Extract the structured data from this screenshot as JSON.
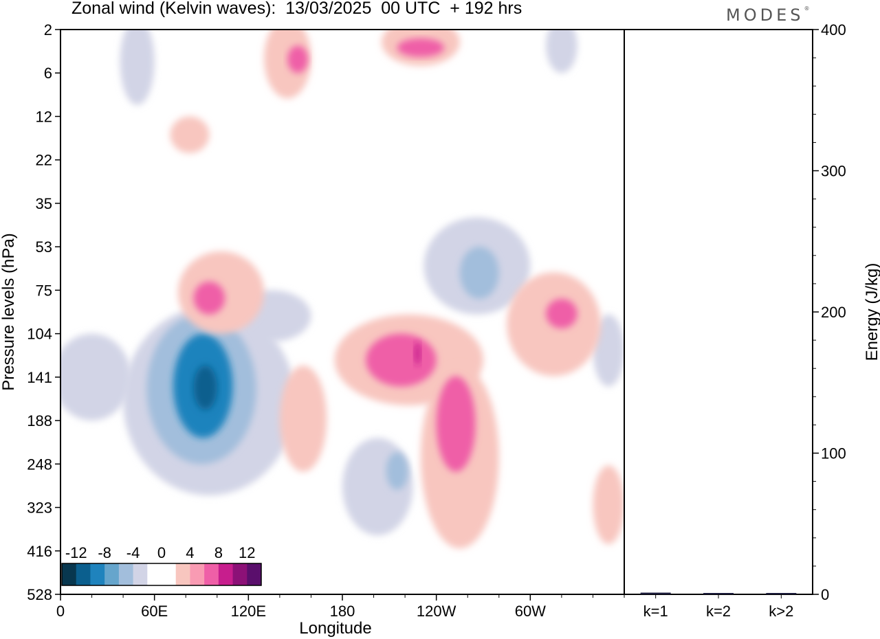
{
  "header": {
    "title": "Zonal wind (Kelvin waves):  13/03/2025  00 UTC  + 192 hrs",
    "logo": "MODES",
    "logo_mark": "®"
  },
  "chart_data": [
    {
      "type": "heatmap",
      "title": "Zonal wind (Kelvin waves):  13/03/2025  00 UTC  + 192 hrs",
      "xlabel": "Longitude",
      "ylabel": "Pressure levels (hPa)",
      "x_ticks": [
        "0",
        "60E",
        "120E",
        "180",
        "120W",
        "60W"
      ],
      "y_ticks": [
        "2",
        "6",
        "12",
        "22",
        "35",
        "53",
        "75",
        "104",
        "141",
        "188",
        "248",
        "323",
        "416",
        "528"
      ],
      "colorbar": {
        "labels": [
          "-12",
          "-8",
          "-4",
          "0",
          "4",
          "8",
          "12"
        ],
        "colors": [
          "#08374f",
          "#0b5f8e",
          "#1f83bd",
          "#66a5cc",
          "#a2bedc",
          "#d2d4e6",
          "#ffffff",
          "#ffffff",
          "#f8c6bf",
          "#f99bb3",
          "#ef5fa7",
          "#c71e8d",
          "#8c1177",
          "#5a0f6c"
        ]
      },
      "regions": [
        {
          "value": -3,
          "lon": [
            -5,
            45
          ],
          "lev": [
            104,
            188
          ]
        },
        {
          "value": -3,
          "lon": [
            38,
            60
          ],
          "lev": [
            1.5,
            10
          ]
        },
        {
          "value": -3,
          "lon": [
            40,
            150
          ],
          "lev": [
            85,
            300
          ]
        },
        {
          "value": -3,
          "lon": [
            110,
            160
          ],
          "lev": [
            75,
            110
          ]
        },
        {
          "value": -6,
          "lon": [
            55,
            125
          ],
          "lev": [
            90,
            248
          ]
        },
        {
          "value": -9,
          "lon": [
            72,
            110
          ],
          "lev": [
            104,
            210
          ]
        },
        {
          "value": -12,
          "lon": [
            85,
            100
          ],
          "lev": [
            130,
            175
          ]
        },
        {
          "value": -3,
          "lon": [
            310,
            330
          ],
          "lev": [
            1.5,
            6
          ]
        },
        {
          "value": -3,
          "lon": [
            232,
            300
          ],
          "lev": [
            40,
            90
          ]
        },
        {
          "value": -6,
          "lon": [
            255,
            280
          ],
          "lev": [
            53,
            80
          ]
        },
        {
          "value": -3,
          "lon": [
            180,
            225
          ],
          "lev": [
            210,
            380
          ]
        },
        {
          "value": -6,
          "lon": [
            208,
            222
          ],
          "lev": [
            230,
            290
          ]
        },
        {
          "value": -3,
          "lon": [
            340,
            360
          ],
          "lev": [
            90,
            150
          ]
        },
        {
          "value": 3,
          "lon": [
            75,
            130
          ],
          "lev": [
            55,
            104
          ]
        },
        {
          "value": 6,
          "lon": [
            85,
            105
          ],
          "lev": [
            70,
            90
          ]
        },
        {
          "value": 3,
          "lon": [
            130,
            160
          ],
          "lev": [
            1.5,
            9
          ]
        },
        {
          "value": 6,
          "lon": [
            145,
            158
          ],
          "lev": [
            3,
            6
          ]
        },
        {
          "value": 3,
          "lon": [
            205,
            255
          ],
          "lev": [
            1.5,
            5
          ]
        },
        {
          "value": 6,
          "lon": [
            215,
            245
          ],
          "lev": [
            2.5,
            4
          ]
        },
        {
          "value": 3,
          "lon": [
            70,
            95
          ],
          "lev": [
            12,
            20
          ]
        },
        {
          "value": 3,
          "lon": [
            175,
            270
          ],
          "lev": [
            90,
            170
          ]
        },
        {
          "value": 3,
          "lon": [
            140,
            170
          ],
          "lev": [
            130,
            260
          ]
        },
        {
          "value": 3,
          "lon": [
            230,
            280
          ],
          "lev": [
            130,
            410
          ]
        },
        {
          "value": 3,
          "lon": [
            285,
            345
          ],
          "lev": [
            65,
            140
          ]
        },
        {
          "value": 3,
          "lon": [
            340,
            360
          ],
          "lev": [
            250,
            400
          ]
        },
        {
          "value": 6,
          "lon": [
            195,
            240
          ],
          "lev": [
            104,
            150
          ]
        },
        {
          "value": 6,
          "lon": [
            240,
            265
          ],
          "lev": [
            140,
            260
          ]
        },
        {
          "value": 6,
          "lon": [
            310,
            330
          ],
          "lev": [
            80,
            100
          ]
        },
        {
          "value": 9,
          "lon": [
            226,
            230
          ],
          "lev": [
            110,
            130
          ]
        }
      ]
    },
    {
      "type": "bar",
      "categories": [
        "k=1",
        "k=2",
        "k>2"
      ],
      "values": [
        1.2,
        0.3,
        0.8
      ],
      "ylabel": "Energy (J/kg)",
      "ylim": [
        0,
        400
      ],
      "y_ticks": [
        "0",
        "100",
        "200",
        "300",
        "400"
      ],
      "bar_color": "#1a1a3a"
    }
  ]
}
